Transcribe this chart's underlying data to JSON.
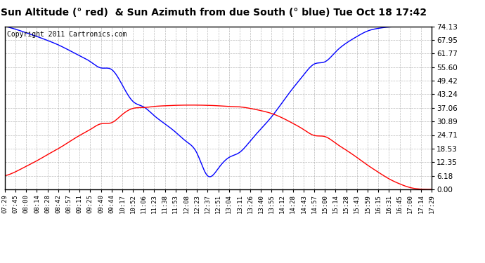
{
  "title": "Sun Altitude (° red)  & Sun Azimuth from due South (° blue) Tue Oct 18 17:42",
  "copyright": "Copyright 2011 Cartronics.com",
  "ylim": [
    0.0,
    74.13
  ],
  "yticks": [
    0.0,
    6.18,
    12.35,
    18.53,
    24.71,
    30.89,
    37.06,
    43.24,
    49.42,
    55.6,
    61.77,
    67.95,
    74.13
  ],
  "x_labels": [
    "07:29",
    "07:45",
    "08:00",
    "08:14",
    "08:28",
    "08:42",
    "08:57",
    "09:11",
    "09:25",
    "09:40",
    "09:44",
    "10:17",
    "10:52",
    "11:06",
    "11:23",
    "11:38",
    "11:53",
    "12:08",
    "12:23",
    "12:37",
    "12:51",
    "13:04",
    "13:11",
    "13:26",
    "13:40",
    "13:55",
    "14:12",
    "14:28",
    "14:43",
    "14:57",
    "15:00",
    "15:14",
    "15:28",
    "15:43",
    "15:59",
    "16:15",
    "16:31",
    "16:45",
    "17:00",
    "17:14",
    "17:29"
  ],
  "blue_values": [
    74.13,
    72.8,
    71.2,
    69.5,
    67.7,
    65.7,
    63.3,
    60.8,
    58.1,
    55.2,
    54.5,
    47.5,
    40.0,
    37.5,
    33.5,
    29.8,
    26.0,
    21.8,
    16.5,
    6.18,
    9.5,
    14.5,
    16.8,
    22.0,
    27.5,
    33.0,
    39.5,
    46.0,
    52.0,
    57.0,
    58.0,
    62.5,
    66.5,
    69.5,
    72.0,
    73.2,
    73.8,
    74.0,
    74.05,
    74.1,
    74.13
  ],
  "red_values": [
    6.18,
    8.0,
    10.5,
    13.0,
    15.8,
    18.5,
    21.5,
    24.5,
    27.2,
    29.8,
    30.3,
    34.0,
    36.8,
    37.2,
    37.7,
    38.0,
    38.2,
    38.3,
    38.3,
    38.2,
    38.0,
    37.7,
    37.5,
    36.8,
    35.8,
    34.5,
    32.5,
    30.0,
    27.2,
    24.5,
    24.0,
    21.0,
    17.8,
    14.5,
    11.0,
    7.8,
    4.8,
    2.5,
    0.8,
    0.1,
    0.0
  ],
  "line_color_blue": "#0000ff",
  "line_color_red": "#ff0000",
  "bg_color": "#ffffff",
  "grid_color": "#aaaaaa",
  "title_fontsize": 10,
  "copyright_fontsize": 7,
  "tick_fontsize": 6.5,
  "ytick_fontsize": 7.5
}
